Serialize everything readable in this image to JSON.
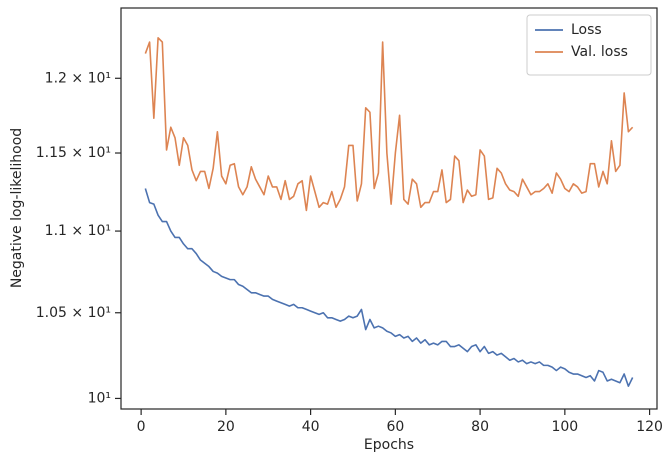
{
  "chart_data": {
    "type": "line",
    "log_y": true,
    "xlabel": "Epochs",
    "ylabel": "Negative log-likelihood",
    "x": [
      1,
      2,
      3,
      4,
      5,
      6,
      7,
      8,
      9,
      10,
      11,
      12,
      13,
      14,
      15,
      16,
      17,
      18,
      19,
      20,
      21,
      22,
      23,
      24,
      25,
      26,
      27,
      28,
      29,
      30,
      31,
      32,
      33,
      34,
      35,
      36,
      37,
      38,
      39,
      40,
      41,
      42,
      43,
      44,
      45,
      46,
      47,
      48,
      49,
      50,
      51,
      52,
      53,
      54,
      55,
      56,
      57,
      58,
      59,
      60,
      61,
      62,
      63,
      64,
      65,
      66,
      67,
      68,
      69,
      70,
      71,
      72,
      73,
      74,
      75,
      76,
      77,
      78,
      79,
      80,
      81,
      82,
      83,
      84,
      85,
      86,
      87,
      88,
      89,
      90,
      91,
      92,
      93,
      94,
      95,
      96,
      97,
      98,
      99,
      100,
      101,
      102,
      103,
      104,
      105,
      106,
      107,
      108,
      109,
      110,
      111,
      112,
      113,
      114,
      115,
      116
    ],
    "series": [
      {
        "name": "Loss",
        "color": "#4c72b0",
        "values": [
          11.27,
          11.18,
          11.17,
          11.1,
          11.06,
          11.06,
          11.0,
          10.96,
          10.96,
          10.92,
          10.89,
          10.89,
          10.86,
          10.82,
          10.8,
          10.78,
          10.75,
          10.74,
          10.72,
          10.71,
          10.7,
          10.7,
          10.67,
          10.66,
          10.64,
          10.62,
          10.62,
          10.61,
          10.6,
          10.6,
          10.58,
          10.57,
          10.56,
          10.55,
          10.54,
          10.55,
          10.53,
          10.53,
          10.52,
          10.51,
          10.5,
          10.49,
          10.5,
          10.47,
          10.47,
          10.46,
          10.45,
          10.46,
          10.48,
          10.47,
          10.48,
          10.52,
          10.4,
          10.46,
          10.41,
          10.42,
          10.41,
          10.39,
          10.38,
          10.36,
          10.37,
          10.35,
          10.36,
          10.33,
          10.35,
          10.32,
          10.34,
          10.31,
          10.32,
          10.31,
          10.33,
          10.33,
          10.3,
          10.3,
          10.31,
          10.29,
          10.27,
          10.3,
          10.31,
          10.27,
          10.3,
          10.26,
          10.27,
          10.25,
          10.26,
          10.24,
          10.22,
          10.23,
          10.21,
          10.22,
          10.2,
          10.21,
          10.2,
          10.21,
          10.19,
          10.19,
          10.18,
          10.16,
          10.18,
          10.17,
          10.15,
          10.14,
          10.14,
          10.13,
          10.12,
          10.13,
          10.1,
          10.16,
          10.15,
          10.1,
          10.11,
          10.1,
          10.09,
          10.14,
          10.07,
          10.12
        ]
      },
      {
        "name": "Val. loss",
        "color": "#dd8452",
        "values": [
          12.17,
          12.25,
          11.73,
          12.28,
          12.25,
          11.52,
          11.67,
          11.6,
          11.42,
          11.6,
          11.55,
          11.39,
          11.32,
          11.38,
          11.38,
          11.27,
          11.4,
          11.64,
          11.35,
          11.3,
          11.42,
          11.43,
          11.28,
          11.23,
          11.28,
          11.41,
          11.33,
          11.28,
          11.23,
          11.35,
          11.28,
          11.28,
          11.2,
          11.32,
          11.2,
          11.22,
          11.3,
          11.32,
          11.13,
          11.35,
          11.25,
          11.15,
          11.18,
          11.17,
          11.25,
          11.15,
          11.2,
          11.28,
          11.55,
          11.55,
          11.19,
          11.3,
          11.8,
          11.77,
          11.27,
          11.37,
          12.25,
          11.5,
          11.17,
          11.5,
          11.75,
          11.2,
          11.17,
          11.33,
          11.3,
          11.15,
          11.18,
          11.18,
          11.25,
          11.25,
          11.39,
          11.18,
          11.2,
          11.48,
          11.45,
          11.18,
          11.26,
          11.22,
          11.23,
          11.52,
          11.48,
          11.2,
          11.21,
          11.4,
          11.37,
          11.3,
          11.26,
          11.25,
          11.22,
          11.33,
          11.28,
          11.23,
          11.25,
          11.25,
          11.27,
          11.3,
          11.24,
          11.37,
          11.33,
          11.27,
          11.25,
          11.3,
          11.28,
          11.24,
          11.25,
          11.43,
          11.43,
          11.28,
          11.38,
          11.3,
          11.58,
          11.38,
          11.42,
          11.9,
          11.64,
          11.67
        ]
      }
    ],
    "xlim": [
      -4.75,
      121.75
    ],
    "xticks": [
      0,
      20,
      40,
      60,
      80,
      100,
      120
    ],
    "ylim": [
      9.94,
      12.49
    ],
    "yticks": [
      {
        "value": 10,
        "label": "10¹"
      },
      {
        "value": 10.5,
        "label": "1.05 × 10¹"
      },
      {
        "value": 11,
        "label": "1.1 × 10¹"
      },
      {
        "value": 11.5,
        "label": "1.15 × 10¹"
      },
      {
        "value": 12,
        "label": "1.2 × 10¹"
      }
    ],
    "grid": false,
    "legend": "upper right"
  }
}
